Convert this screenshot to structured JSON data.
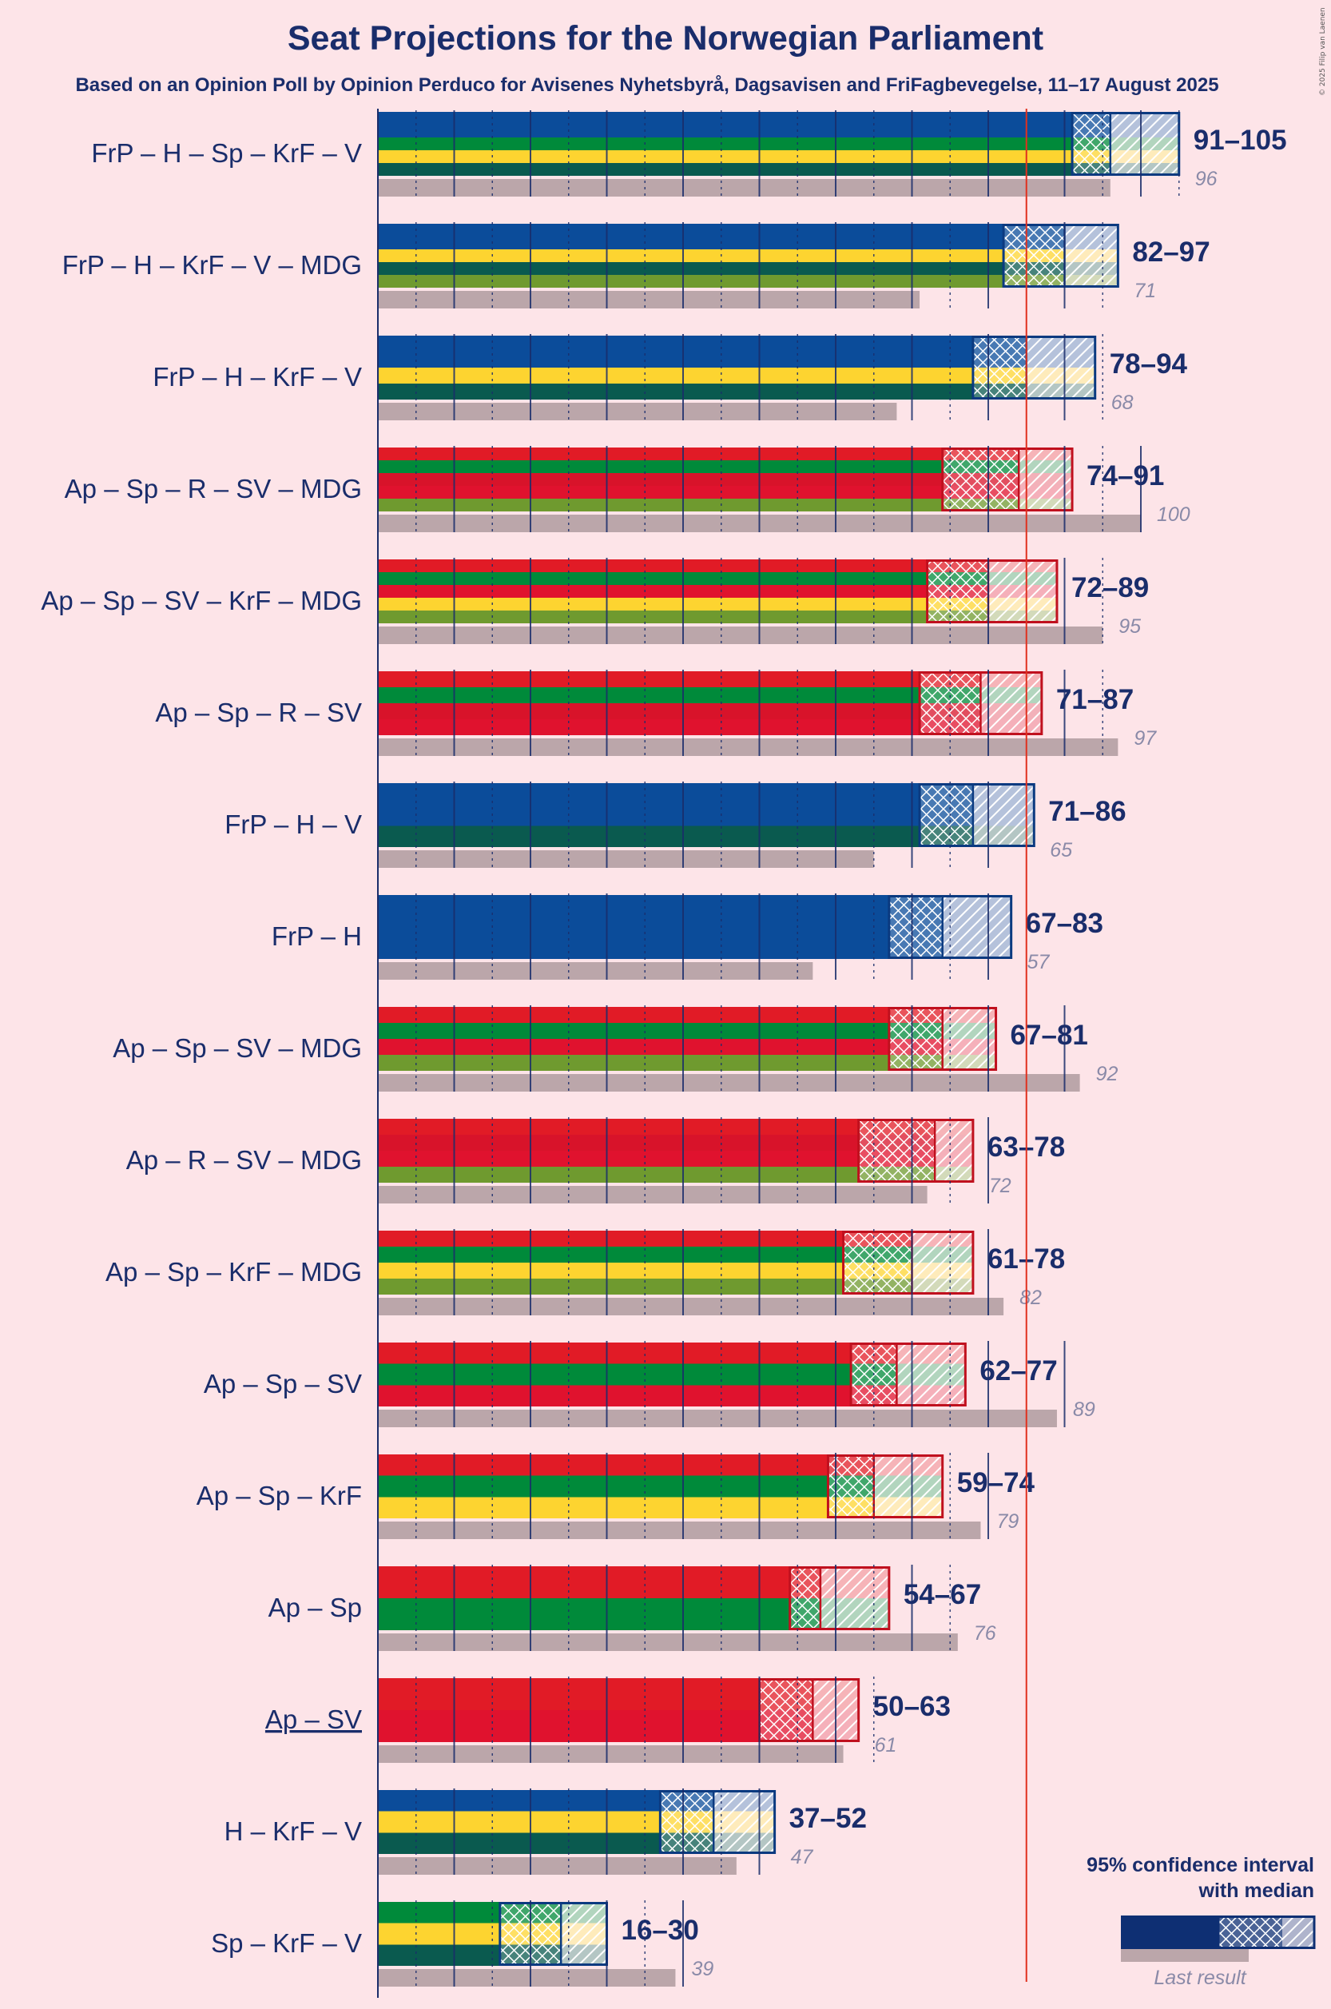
{
  "title": "Seat Projections for the Norwegian Parliament",
  "subtitle": "Based on an Opinion Poll by Opinion Perduco for Avisenes Nyhetsbyrå, Dagsavisen and FriFagbevegelse, 11–17 August 2025",
  "copyright": "© 2025 Filip van Laenen",
  "legend": {
    "title_line1": "95% confidence interval",
    "title_line2": "with median",
    "last_result": "Last result"
  },
  "colors": {
    "background": "#fde4e8",
    "text": "#1a2d6b",
    "last_result_bar": "#bba6aa",
    "majority_line": "#e0301e",
    "Ap": "#e11b26",
    "Sp": "#008a3a",
    "R": "#d8132a",
    "SV": "#e0122e",
    "KrF": "#fdd430",
    "MDG": "#6f9a2f",
    "FrP": "#0b4c9a",
    "H": "#0b4c9a",
    "V": "#0a5a4f"
  },
  "chart_data": {
    "type": "bar",
    "title": "Seat Projections for the Norwegian Parliament",
    "majority": 85,
    "xlim": [
      0,
      109
    ],
    "coalitions": [
      {
        "name": "FrP – H – Sp – KrF – V",
        "parties": [
          "FrP",
          "H",
          "Sp",
          "KrF",
          "V"
        ],
        "low": 91,
        "median": 96,
        "high": 105,
        "range_label": "91–105",
        "last": 96,
        "last_label": "96",
        "underline": false
      },
      {
        "name": "FrP – H – KrF – V – MDG",
        "parties": [
          "FrP",
          "H",
          "KrF",
          "V",
          "MDG"
        ],
        "low": 82,
        "median": 90,
        "high": 97,
        "range_label": "82–97",
        "last": 71,
        "last_label": "71",
        "underline": false
      },
      {
        "name": "FrP – H – KrF – V",
        "parties": [
          "FrP",
          "H",
          "KrF",
          "V"
        ],
        "low": 78,
        "median": 85,
        "high": 94,
        "range_label": "78–94",
        "last": 68,
        "last_label": "68",
        "underline": false
      },
      {
        "name": "Ap – Sp – R – SV – MDG",
        "parties": [
          "Ap",
          "Sp",
          "R",
          "SV",
          "MDG"
        ],
        "low": 74,
        "median": 84,
        "high": 91,
        "range_label": "74–91",
        "last": 100,
        "last_label": "100",
        "underline": false
      },
      {
        "name": "Ap – Sp – SV – KrF – MDG",
        "parties": [
          "Ap",
          "Sp",
          "SV",
          "KrF",
          "MDG"
        ],
        "low": 72,
        "median": 80,
        "high": 89,
        "range_label": "72–89",
        "last": 95,
        "last_label": "95",
        "underline": false
      },
      {
        "name": "Ap – Sp – R – SV",
        "parties": [
          "Ap",
          "Sp",
          "R",
          "SV"
        ],
        "low": 71,
        "median": 79,
        "high": 87,
        "range_label": "71–87",
        "last": 97,
        "last_label": "97",
        "underline": false
      },
      {
        "name": "FrP – H – V",
        "parties": [
          "FrP",
          "H",
          "V"
        ],
        "low": 71,
        "median": 78,
        "high": 86,
        "range_label": "71–86",
        "last": 65,
        "last_label": "65",
        "underline": false
      },
      {
        "name": "FrP – H",
        "parties": [
          "FrP",
          "H"
        ],
        "low": 67,
        "median": 74,
        "high": 83,
        "range_label": "67–83",
        "last": 57,
        "last_label": "57",
        "underline": false
      },
      {
        "name": "Ap – Sp – SV – MDG",
        "parties": [
          "Ap",
          "Sp",
          "SV",
          "MDG"
        ],
        "low": 67,
        "median": 74,
        "high": 81,
        "range_label": "67–81",
        "last": 92,
        "last_label": "92",
        "underline": false
      },
      {
        "name": "Ap – R – SV – MDG",
        "parties": [
          "Ap",
          "R",
          "SV",
          "MDG"
        ],
        "low": 63,
        "median": 73,
        "high": 78,
        "range_label": "63–78",
        "last": 72,
        "last_label": "72",
        "underline": false
      },
      {
        "name": "Ap – Sp – KrF – MDG",
        "parties": [
          "Ap",
          "Sp",
          "KrF",
          "MDG"
        ],
        "low": 61,
        "median": 70,
        "high": 78,
        "range_label": "61–78",
        "last": 82,
        "last_label": "82",
        "underline": false
      },
      {
        "name": "Ap – Sp – SV",
        "parties": [
          "Ap",
          "Sp",
          "SV"
        ],
        "low": 62,
        "median": 68,
        "high": 77,
        "range_label": "62–77",
        "last": 89,
        "last_label": "89",
        "underline": false
      },
      {
        "name": "Ap – Sp – KrF",
        "parties": [
          "Ap",
          "Sp",
          "KrF"
        ],
        "low": 59,
        "median": 65,
        "high": 74,
        "range_label": "59–74",
        "last": 79,
        "last_label": "79",
        "underline": false
      },
      {
        "name": "Ap – Sp",
        "parties": [
          "Ap",
          "Sp"
        ],
        "low": 54,
        "median": 58,
        "high": 67,
        "range_label": "54–67",
        "last": 76,
        "last_label": "76",
        "underline": false
      },
      {
        "name": "Ap – SV",
        "parties": [
          "Ap",
          "SV"
        ],
        "low": 50,
        "median": 57,
        "high": 63,
        "range_label": "50–63",
        "last": 61,
        "last_label": "61",
        "underline": true
      },
      {
        "name": "H – KrF – V",
        "parties": [
          "H",
          "KrF",
          "V"
        ],
        "low": 37,
        "median": 44,
        "high": 52,
        "range_label": "37–52",
        "last": 47,
        "last_label": "47",
        "underline": false
      },
      {
        "name": "Sp – KrF – V",
        "parties": [
          "Sp",
          "KrF",
          "V"
        ],
        "low": 16,
        "median": 24,
        "high": 30,
        "range_label": "16–30",
        "last": 39,
        "last_label": "39",
        "underline": false
      }
    ]
  }
}
